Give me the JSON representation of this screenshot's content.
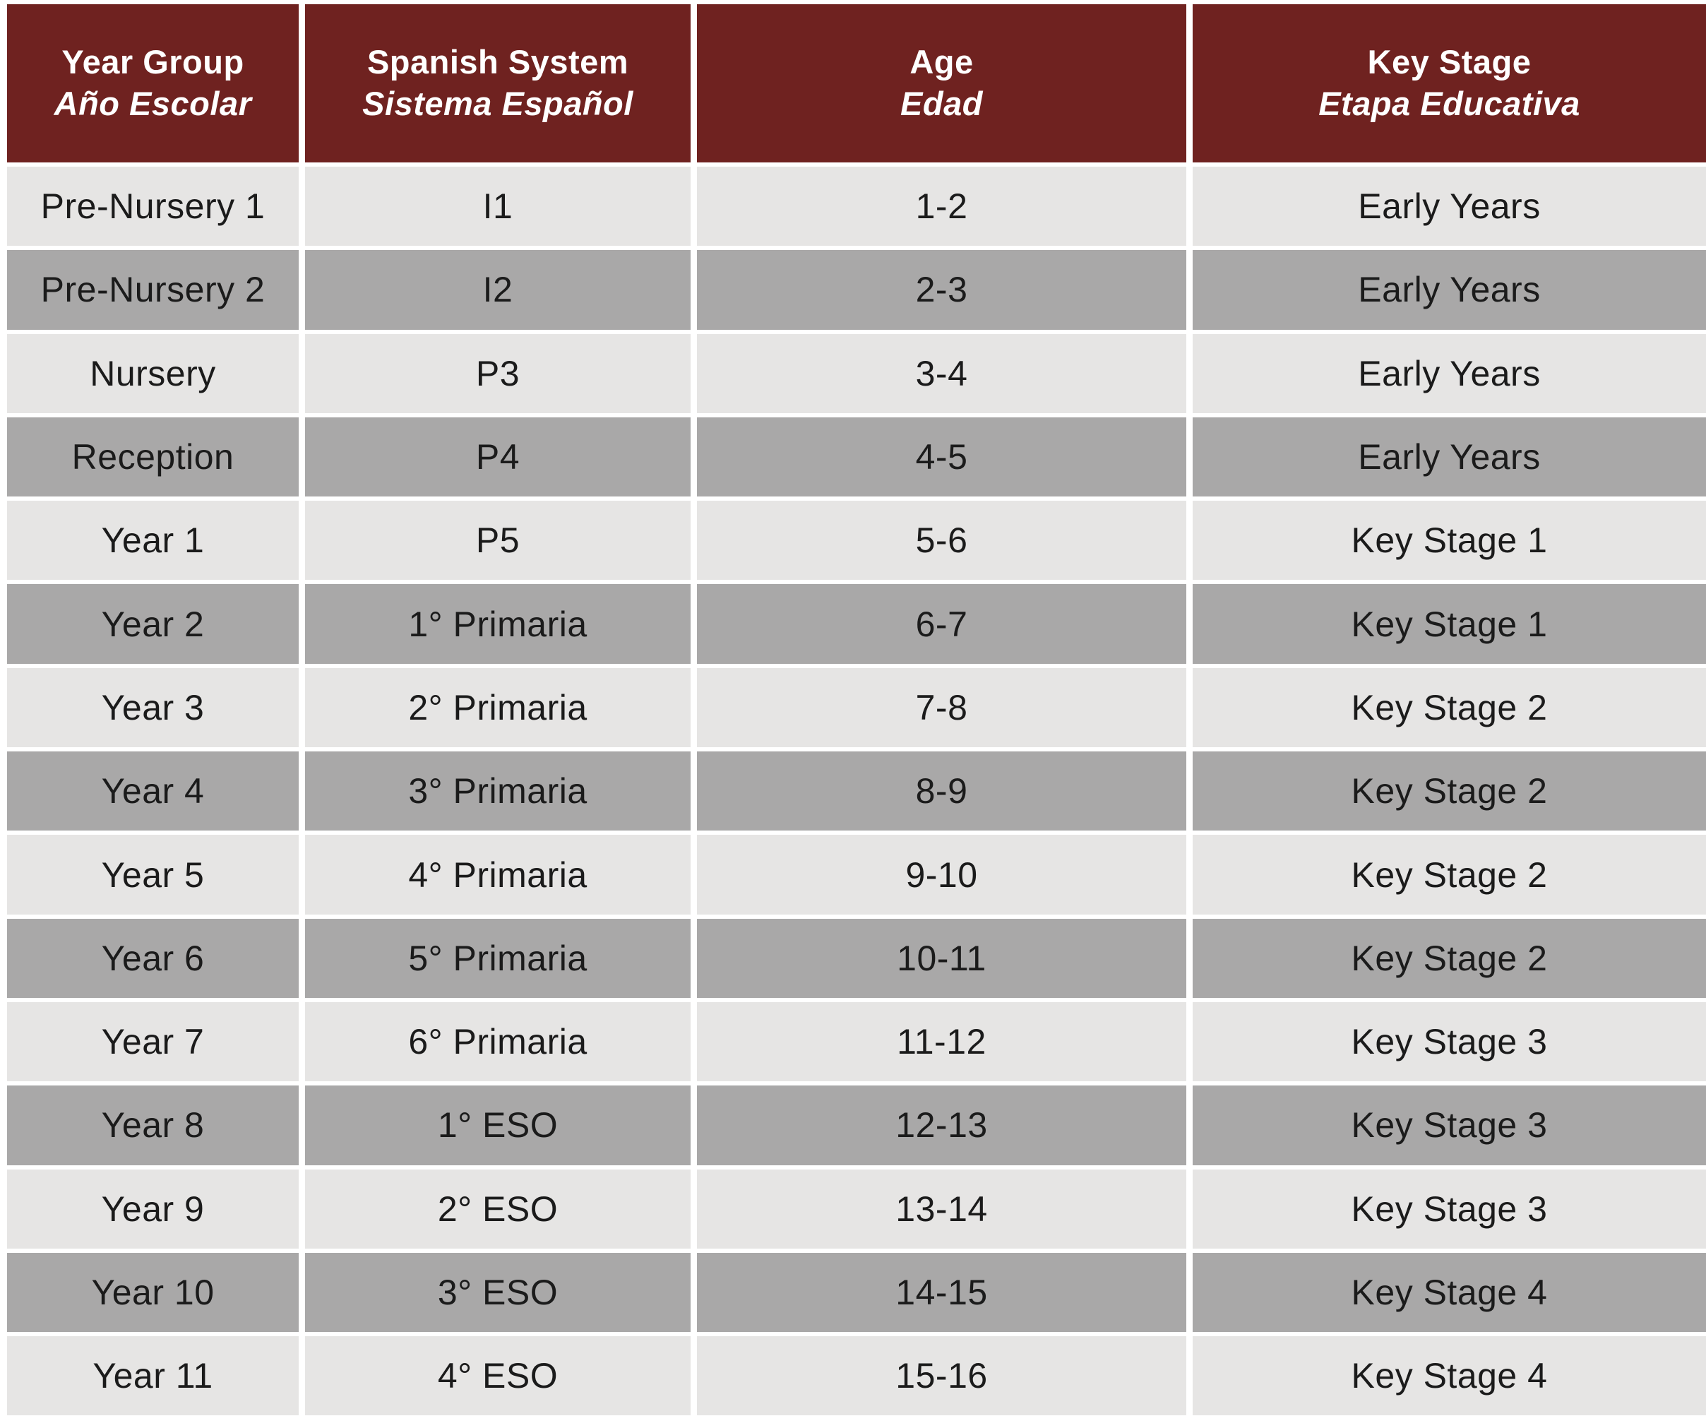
{
  "colors": {
    "header_bg": "#6f2220",
    "header_text": "#ffffff",
    "row_light_bg": "#e6e5e4",
    "row_dark_bg": "#a9a8a8",
    "body_text": "#1b1b1b",
    "gap_color": "#ffffff"
  },
  "table": {
    "header": {
      "columns": [
        {
          "en": "Year Group",
          "es": "Año Escolar"
        },
        {
          "en": "Spanish System",
          "es": "Sistema Español"
        },
        {
          "en": "Age",
          "es": "Edad"
        },
        {
          "en": "Key Stage",
          "es": "Etapa Educativa"
        }
      ]
    },
    "rows": [
      {
        "year_group": "Pre-Nursery 1",
        "spanish_system": "I1",
        "age": "1-2",
        "key_stage": "Early Years"
      },
      {
        "year_group": "Pre-Nursery 2",
        "spanish_system": "I2",
        "age": "2-3",
        "key_stage": "Early Years"
      },
      {
        "year_group": "Nursery",
        "spanish_system": "P3",
        "age": "3-4",
        "key_stage": "Early Years"
      },
      {
        "year_group": "Reception",
        "spanish_system": "P4",
        "age": "4-5",
        "key_stage": "Early Years"
      },
      {
        "year_group": "Year 1",
        "spanish_system": "P5",
        "age": "5-6",
        "key_stage": "Key Stage 1"
      },
      {
        "year_group": "Year 2",
        "spanish_system": "1° Primaria",
        "age": "6-7",
        "key_stage": "Key Stage 1"
      },
      {
        "year_group": "Year 3",
        "spanish_system": "2° Primaria",
        "age": "7-8",
        "key_stage": "Key Stage 2"
      },
      {
        "year_group": "Year 4",
        "spanish_system": "3° Primaria",
        "age": "8-9",
        "key_stage": "Key Stage 2"
      },
      {
        "year_group": "Year 5",
        "spanish_system": "4° Primaria",
        "age": "9-10",
        "key_stage": "Key Stage 2"
      },
      {
        "year_group": "Year 6",
        "spanish_system": "5° Primaria",
        "age": "10-11",
        "key_stage": "Key Stage 2"
      },
      {
        "year_group": "Year 7",
        "spanish_system": "6° Primaria",
        "age": "11-12",
        "key_stage": "Key Stage 3"
      },
      {
        "year_group": "Year 8",
        "spanish_system": "1° ESO",
        "age": "12-13",
        "key_stage": "Key Stage 3"
      },
      {
        "year_group": "Year 9",
        "spanish_system": "2° ESO",
        "age": "13-14",
        "key_stage": "Key Stage 3"
      },
      {
        "year_group": "Year 10",
        "spanish_system": "3° ESO",
        "age": "14-15",
        "key_stage": "Key Stage 4"
      },
      {
        "year_group": "Year 11",
        "spanish_system": "4° ESO",
        "age": "15-16",
        "key_stage": "Key Stage 4"
      }
    ]
  }
}
